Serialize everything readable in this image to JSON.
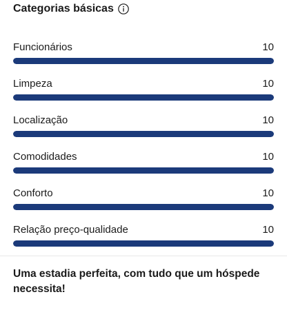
{
  "header": {
    "title": "Categorias básicas",
    "info_icon": "info-circle-icon"
  },
  "colors": {
    "bar_fill": "#1b3a7a",
    "bar_track": "#e7e7e7",
    "text": "#1a1a1a"
  },
  "score_max": 10,
  "categories": [
    {
      "label": "Funcionários",
      "score": "10",
      "fill_fraction": 1.0
    },
    {
      "label": "Limpeza",
      "score": "10",
      "fill_fraction": 1.0
    },
    {
      "label": "Localização",
      "score": "10",
      "fill_fraction": 1.0
    },
    {
      "label": "Comodidades",
      "score": "10",
      "fill_fraction": 1.0
    },
    {
      "label": "Conforto",
      "score": "10",
      "fill_fraction": 1.0
    },
    {
      "label": "Relação preço-qualidade",
      "score": "10",
      "fill_fraction": 1.0
    }
  ],
  "review": {
    "quote": "Uma estadia perfeita, com tudo que um hóspede necessita!"
  }
}
